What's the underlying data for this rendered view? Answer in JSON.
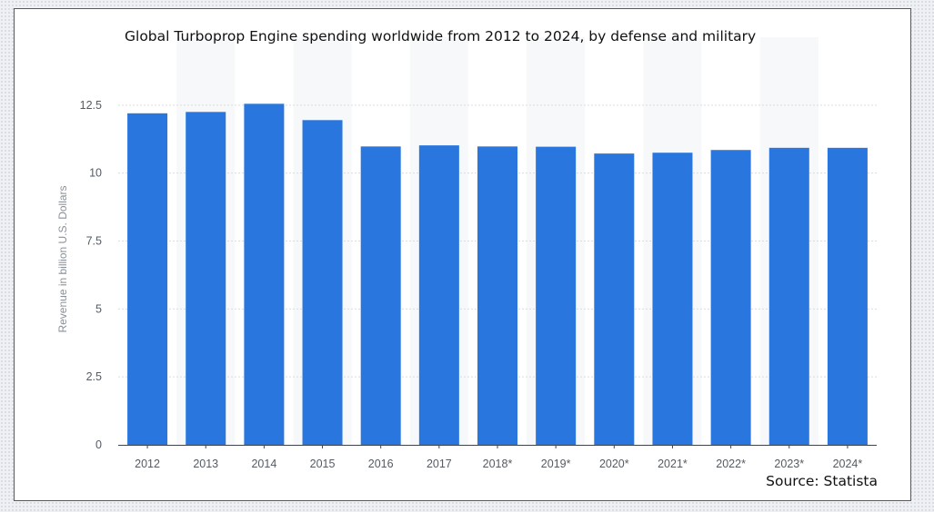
{
  "chart_data": {
    "type": "bar",
    "title": "Global Turboprop Engine spending worldwide from 2012 to 2024, by defense and military",
    "source": "Source: Statista",
    "ylabel": "Revenue in billion U.S. Dollars",
    "xlabel": "",
    "ylim": [
      0,
      15
    ],
    "yticks": [
      "0",
      "2.5",
      "5",
      "7.5",
      "10",
      "12.5"
    ],
    "ytick_values": [
      0,
      2.5,
      5,
      7.5,
      10,
      12.5
    ],
    "categories": [
      "2012",
      "2013",
      "2014",
      "2015",
      "2016",
      "2017",
      "2018*",
      "2019*",
      "2020*",
      "2021*",
      "2022*",
      "2023*",
      "2024*"
    ],
    "values": [
      12.2,
      12.25,
      12.55,
      11.95,
      10.98,
      11.02,
      10.98,
      10.97,
      10.72,
      10.75,
      10.85,
      10.93,
      10.93
    ],
    "grid": true,
    "colors": {
      "bar": "#2977de",
      "grid": "#d9dce1",
      "band": "#f7f8f9",
      "baseline": "#40444a"
    }
  }
}
